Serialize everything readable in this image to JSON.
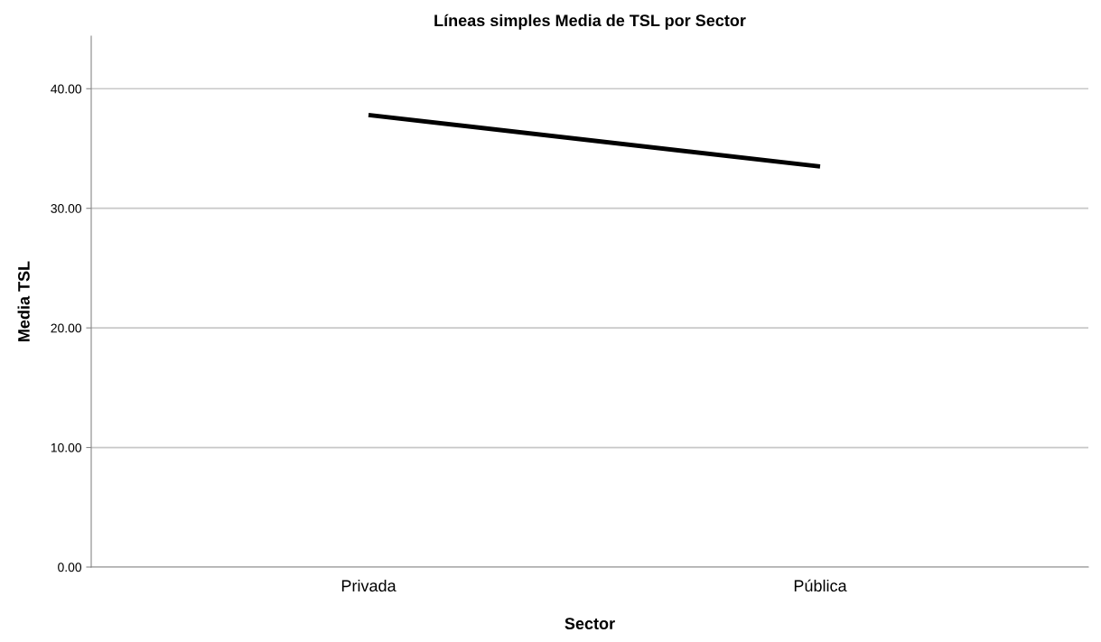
{
  "chart_data": {
    "type": "line",
    "title": "Líneas simples Media de TSL por Sector",
    "xlabel": "Sector",
    "ylabel": "Media TSL",
    "categories": [
      "Privada",
      "Pública"
    ],
    "series": [
      {
        "color": "#000000",
        "values": [
          37.8,
          33.5
        ]
      }
    ],
    "ylim": [
      0,
      44.4
    ],
    "yticks": [
      {
        "value": 0,
        "label": "0.00"
      },
      {
        "value": 10,
        "label": "10.00"
      },
      {
        "value": 20,
        "label": "20.00"
      },
      {
        "value": 30,
        "label": "30.00"
      },
      {
        "value": 40,
        "label": "40.00"
      }
    ],
    "grid": "y",
    "marker": "none",
    "line_style": "solid",
    "legend": false
  }
}
